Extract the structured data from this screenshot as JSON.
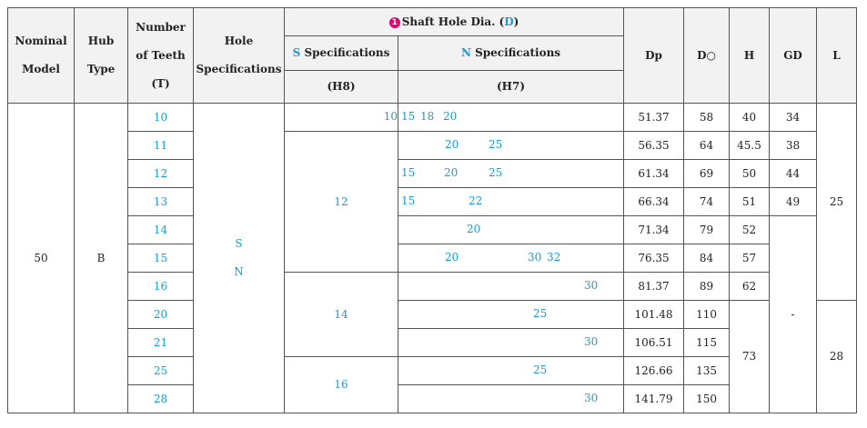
{
  "headers": {
    "nominal_model": [
      "Nominal",
      "Model"
    ],
    "hub_type": [
      "Hub",
      "Type"
    ],
    "number_of_teeth": [
      "Number",
      "of Teeth",
      "(T)"
    ],
    "hole_specifications": [
      "Hole",
      "Specifications"
    ],
    "shaft_hole_bullet": "1",
    "shaft_hole_prefix": "Shaft Hole Dia. (",
    "shaft_hole_letter": "D",
    "shaft_hole_suffix": ")",
    "s_spec_letter": "S",
    "s_spec_text": " Specifications",
    "s_spec_fit": "(H8)",
    "n_spec_letter": "N",
    "n_spec_text": " Specifications",
    "n_spec_fit": "(H7)",
    "dp": "Dp",
    "do": "D○",
    "h": "H",
    "gd": "GD",
    "l": "L"
  },
  "group": {
    "nominal_model": "50",
    "hub_type": "B",
    "hole_spec_s": "S",
    "hole_spec_n": "N"
  },
  "s_spec_groups": [
    "12",
    "14",
    "16"
  ],
  "rows": [
    {
      "teeth": "10",
      "s": "10",
      "n": [
        "15",
        "18",
        "20"
      ],
      "dp": "51.37",
      "do": "58",
      "h": "40",
      "gd": "34"
    },
    {
      "teeth": "11",
      "n": [
        "20",
        "25"
      ],
      "dp": "56.35",
      "do": "64",
      "h": "45.5",
      "gd": "38"
    },
    {
      "teeth": "12",
      "n": [
        "15",
        "20",
        "25"
      ],
      "dp": "61.34",
      "do": "69",
      "h": "50",
      "gd": "44"
    },
    {
      "teeth": "13",
      "n": [
        "15",
        "22"
      ],
      "dp": "66.34",
      "do": "74",
      "h": "51",
      "gd": "49"
    },
    {
      "teeth": "14",
      "n": [
        "20"
      ],
      "dp": "71.34",
      "do": "79",
      "h": "52"
    },
    {
      "teeth": "15",
      "n": [
        "20",
        "30",
        "32"
      ],
      "dp": "76.35",
      "do": "84",
      "h": "57"
    },
    {
      "teeth": "16",
      "n": [
        "30"
      ],
      "dp": "81.37",
      "do": "89",
      "h": "62"
    },
    {
      "teeth": "20",
      "n": [
        "25"
      ],
      "dp": "101.48",
      "do": "110"
    },
    {
      "teeth": "21",
      "n": [
        "30"
      ],
      "dp": "106.51",
      "do": "115"
    },
    {
      "teeth": "25",
      "n": [
        "25"
      ],
      "dp": "126.66",
      "do": "135"
    },
    {
      "teeth": "28",
      "n": [
        "30"
      ],
      "dp": "141.79",
      "do": "150"
    }
  ],
  "merged": {
    "h_large": "73",
    "gd_dash": "-",
    "l_first": "25",
    "l_second": "28"
  }
}
